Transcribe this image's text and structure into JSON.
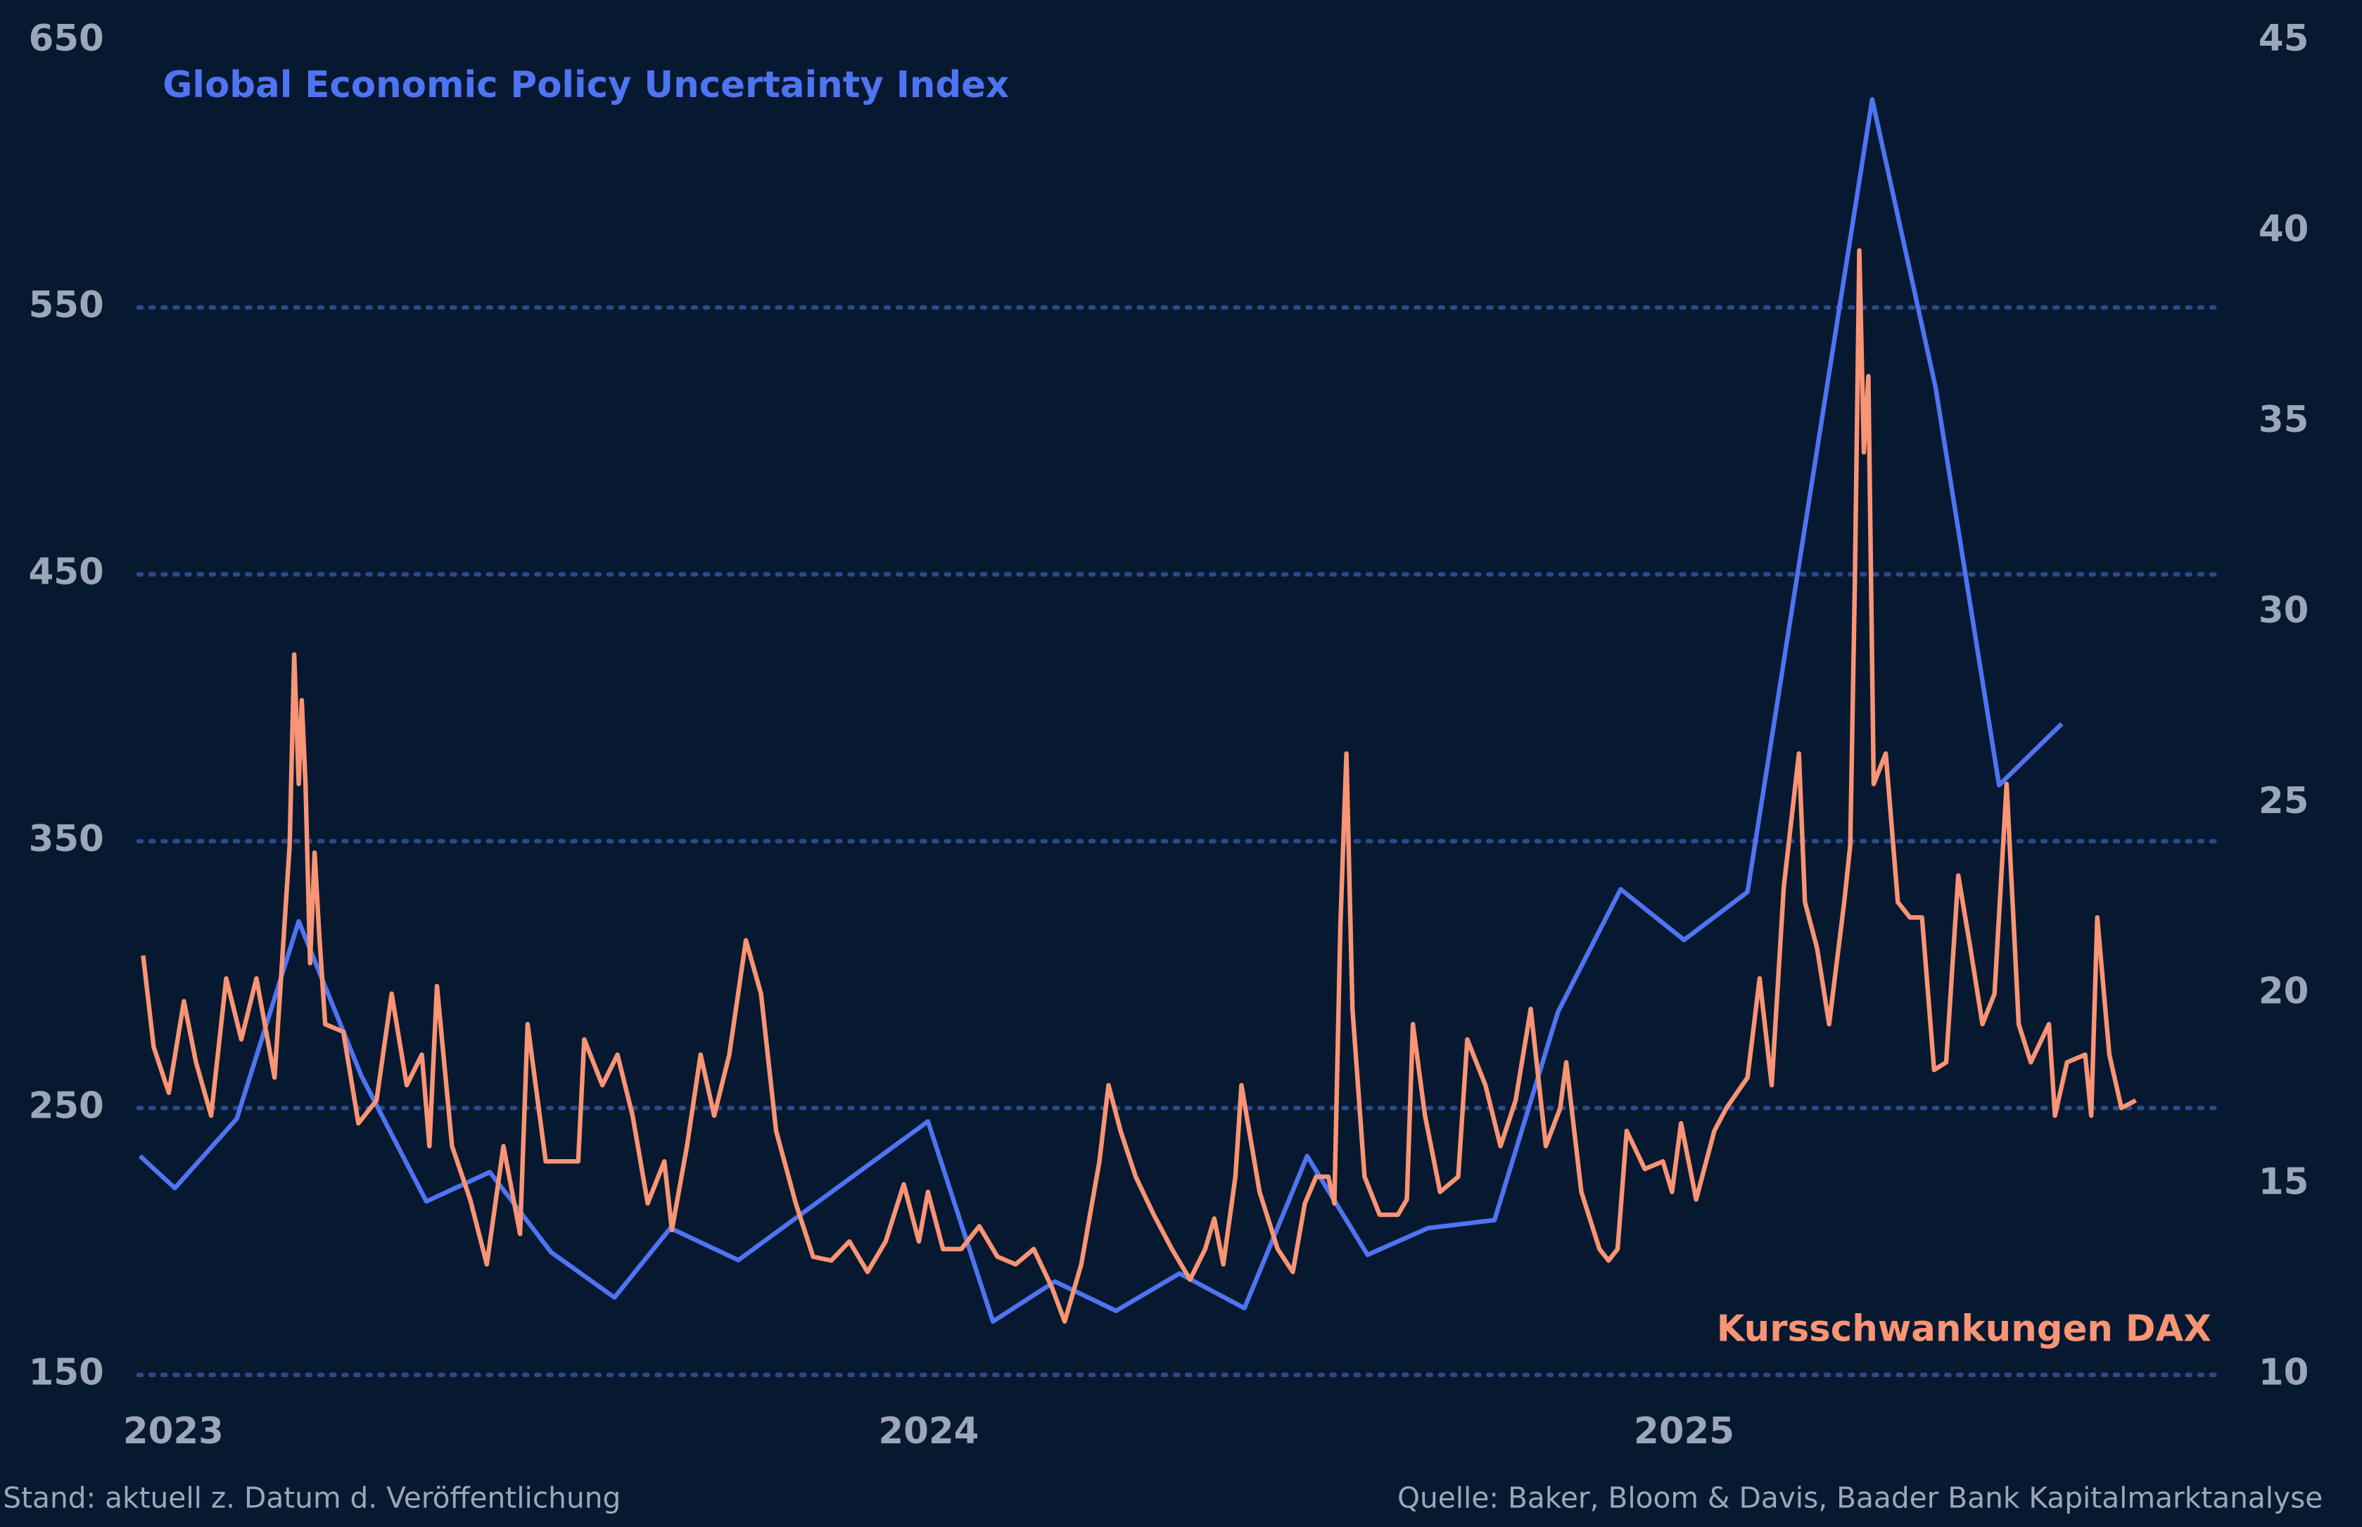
{
  "chart_data": {
    "type": "line",
    "x_axis_type": "year",
    "xlim": [
      2022.954,
      2025.712
    ],
    "xticks": [
      2023,
      2024,
      2025
    ],
    "ylim": [
      150,
      650
    ],
    "yticks": [
      150,
      250,
      350,
      450,
      550,
      650
    ],
    "y2lim": [
      10,
      45
    ],
    "y2ticks": [
      10,
      15,
      20,
      25,
      30,
      35,
      40,
      45
    ],
    "grid": true,
    "note": "Stand: aktuell z. Datum d. Veröffentlichung",
    "source": "Quelle: Baker, Bloom & Davis, Baader Bank Kapitalmarktanalyse",
    "series": [
      {
        "name": "Global Economic Policy Uncertainty Index",
        "color": "#4f74f2",
        "x": [
          2022.956,
          2023.002,
          2023.084,
          2023.166,
          2023.249,
          2023.335,
          2023.419,
          2023.5,
          2023.584,
          2023.658,
          2023.748,
          2023.999,
          2024.085,
          2024.167,
          2024.248,
          2024.332,
          2024.418,
          2024.501,
          2024.581,
          2024.661,
          2024.749,
          2024.833,
          2024.916,
          2025.0,
          2025.084,
          2025.249,
          2025.333,
          2025.417,
          2025.5
        ],
        "values": [
          232,
          220,
          246,
          320,
          262,
          215,
          226,
          196,
          179,
          205,
          193,
          245,
          170,
          185,
          174,
          188,
          175,
          232,
          195,
          205,
          208,
          286,
          332,
          313,
          331,
          628,
          520,
          371,
          394
        ]
      },
      {
        "name": "Kursschwankungen DAX",
        "color": "#f99474",
        "axis": "y2",
        "x": [
          2022.96,
          2022.974,
          2022.994,
          2023.014,
          2023.03,
          2023.05,
          2023.07,
          2023.09,
          2023.11,
          2023.134,
          2023.154,
          2023.16,
          2023.166,
          2023.17,
          2023.175,
          2023.181,
          2023.187,
          2023.193,
          2023.201,
          2023.225,
          2023.245,
          2023.269,
          2023.289,
          2023.309,
          2023.329,
          2023.339,
          2023.349,
          2023.369,
          2023.393,
          2023.415,
          2023.437,
          2023.459,
          2023.469,
          2023.493,
          2023.512,
          2023.536,
          2023.544,
          2023.568,
          2023.588,
          2023.608,
          2023.628,
          2023.65,
          2023.66,
          2023.68,
          2023.698,
          2023.716,
          2023.736,
          2023.758,
          2023.778,
          2023.798,
          2023.824,
          2023.847,
          2023.871,
          2023.895,
          2023.919,
          2023.943,
          2023.967,
          2023.987,
          2023.999,
          2024.019,
          2024.043,
          2024.067,
          2024.091,
          2024.115,
          2024.139,
          2024.163,
          2024.18,
          2024.202,
          2024.226,
          2024.238,
          2024.254,
          2024.274,
          2024.298,
          2024.322,
          2024.346,
          2024.366,
          2024.378,
          2024.39,
          2024.406,
          2024.414,
          2024.438,
          2024.462,
          2024.482,
          2024.498,
          2024.513,
          2024.529,
          2024.537,
          2024.545,
          2024.553,
          2024.561,
          2024.577,
          2024.597,
          2024.621,
          2024.633,
          2024.641,
          2024.657,
          2024.677,
          2024.701,
          2024.713,
          2024.737,
          2024.757,
          2024.777,
          2024.797,
          2024.817,
          2024.836,
          2024.844,
          2024.864,
          2024.888,
          2024.9,
          2024.912,
          2024.924,
          2024.948,
          2024.972,
          2024.984,
          2024.996,
          2025.016,
          2025.04,
          2025.056,
          2025.084,
          2025.1,
          2025.116,
          2025.132,
          2025.152,
          2025.16,
          2025.176,
          2025.192,
          2025.212,
          2025.22,
          2025.226,
          2025.232,
          2025.238,
          2025.244,
          2025.251,
          2025.267,
          2025.283,
          2025.299,
          2025.315,
          2025.331,
          2025.347,
          2025.363,
          2025.379,
          2025.395,
          2025.411,
          2025.427,
          2025.443,
          2025.459,
          2025.483,
          2025.491,
          2025.507,
          2025.531,
          2025.539,
          2025.547,
          2025.563,
          2025.579,
          2025.598
        ],
        "values": [
          21.0,
          18.6,
          17.4,
          19.8,
          18.2,
          16.8,
          20.4,
          18.8,
          20.4,
          17.8,
          23.9,
          28.9,
          25.5,
          27.7,
          25.5,
          20.8,
          23.7,
          21.6,
          19.2,
          19.0,
          16.6,
          17.2,
          20.0,
          17.6,
          18.4,
          16.0,
          20.2,
          16.0,
          14.6,
          12.9,
          16.0,
          13.7,
          19.2,
          15.6,
          15.6,
          15.6,
          18.8,
          17.6,
          18.4,
          16.8,
          14.5,
          15.6,
          13.8,
          16.0,
          18.4,
          16.8,
          18.4,
          21.4,
          20.0,
          16.4,
          14.5,
          13.1,
          13.0,
          13.5,
          12.7,
          13.5,
          15.0,
          13.5,
          14.8,
          13.3,
          13.3,
          13.9,
          13.1,
          12.9,
          13.3,
          12.3,
          11.4,
          12.9,
          15.6,
          17.6,
          16.4,
          15.2,
          14.2,
          13.3,
          12.5,
          13.3,
          14.1,
          12.9,
          15.2,
          17.6,
          14.8,
          13.3,
          12.7,
          14.5,
          15.2,
          15.2,
          14.5,
          21.8,
          26.3,
          19.6,
          15.2,
          14.2,
          14.2,
          14.6,
          19.2,
          16.8,
          14.8,
          15.2,
          18.8,
          17.6,
          16.0,
          17.2,
          19.6,
          16.0,
          17.0,
          18.2,
          14.8,
          13.3,
          13.0,
          13.3,
          16.4,
          15.4,
          15.6,
          14.8,
          16.6,
          14.6,
          16.4,
          17.0,
          17.8,
          20.4,
          17.6,
          22.8,
          26.3,
          22.4,
          21.2,
          19.2,
          22.4,
          23.9,
          30.7,
          39.5,
          34.2,
          36.2,
          25.5,
          26.3,
          22.4,
          22.0,
          22.0,
          18.0,
          18.2,
          23.1,
          21.2,
          19.2,
          20.0,
          25.5,
          19.2,
          18.2,
          19.2,
          16.8,
          18.2,
          18.4,
          16.8,
          22.0,
          18.4,
          17.0,
          17.2
        ]
      }
    ]
  }
}
